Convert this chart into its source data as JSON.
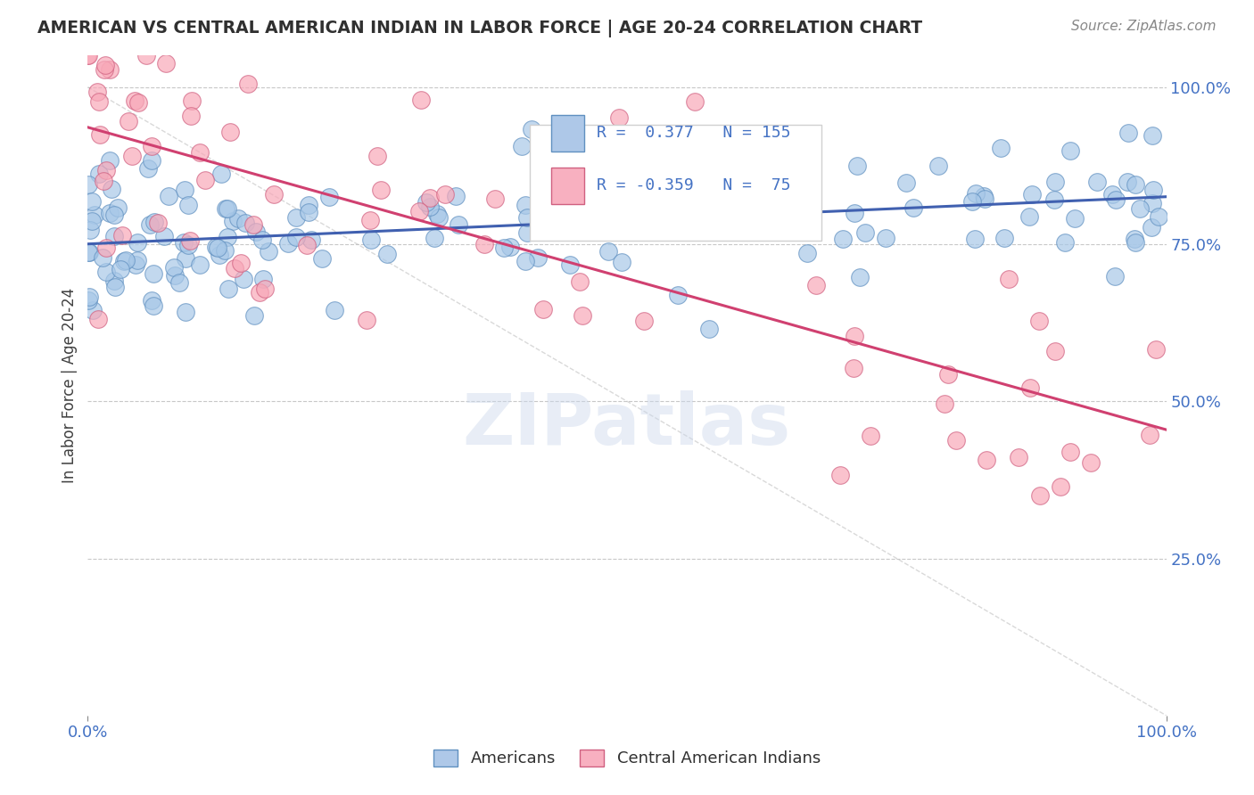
{
  "title": "AMERICAN VS CENTRAL AMERICAN INDIAN IN LABOR FORCE | AGE 20-24 CORRELATION CHART",
  "source": "Source: ZipAtlas.com",
  "ylabel": "In Labor Force | Age 20-24",
  "ytick_labels": [
    "25.0%",
    "50.0%",
    "75.0%",
    "100.0%"
  ],
  "ytick_values": [
    0.25,
    0.5,
    0.75,
    1.0
  ],
  "americans_R": 0.377,
  "americans_N": 155,
  "central_american_R": -0.359,
  "central_american_N": 75,
  "american_color": "#a8c8e8",
  "american_edge": "#6090c0",
  "central_color": "#f8a8b8",
  "central_edge": "#d06080",
  "american_line_color": "#4060b0",
  "central_line_color": "#d04070",
  "dashed_line_color": "#c0c0c0",
  "background_color": "#ffffff",
  "grid_color": "#c8c8c8",
  "title_color": "#303030",
  "axis_label_color": "#4472C4",
  "source_color": "#888888",
  "legend_label_color": "#4472C4",
  "seed": 42
}
